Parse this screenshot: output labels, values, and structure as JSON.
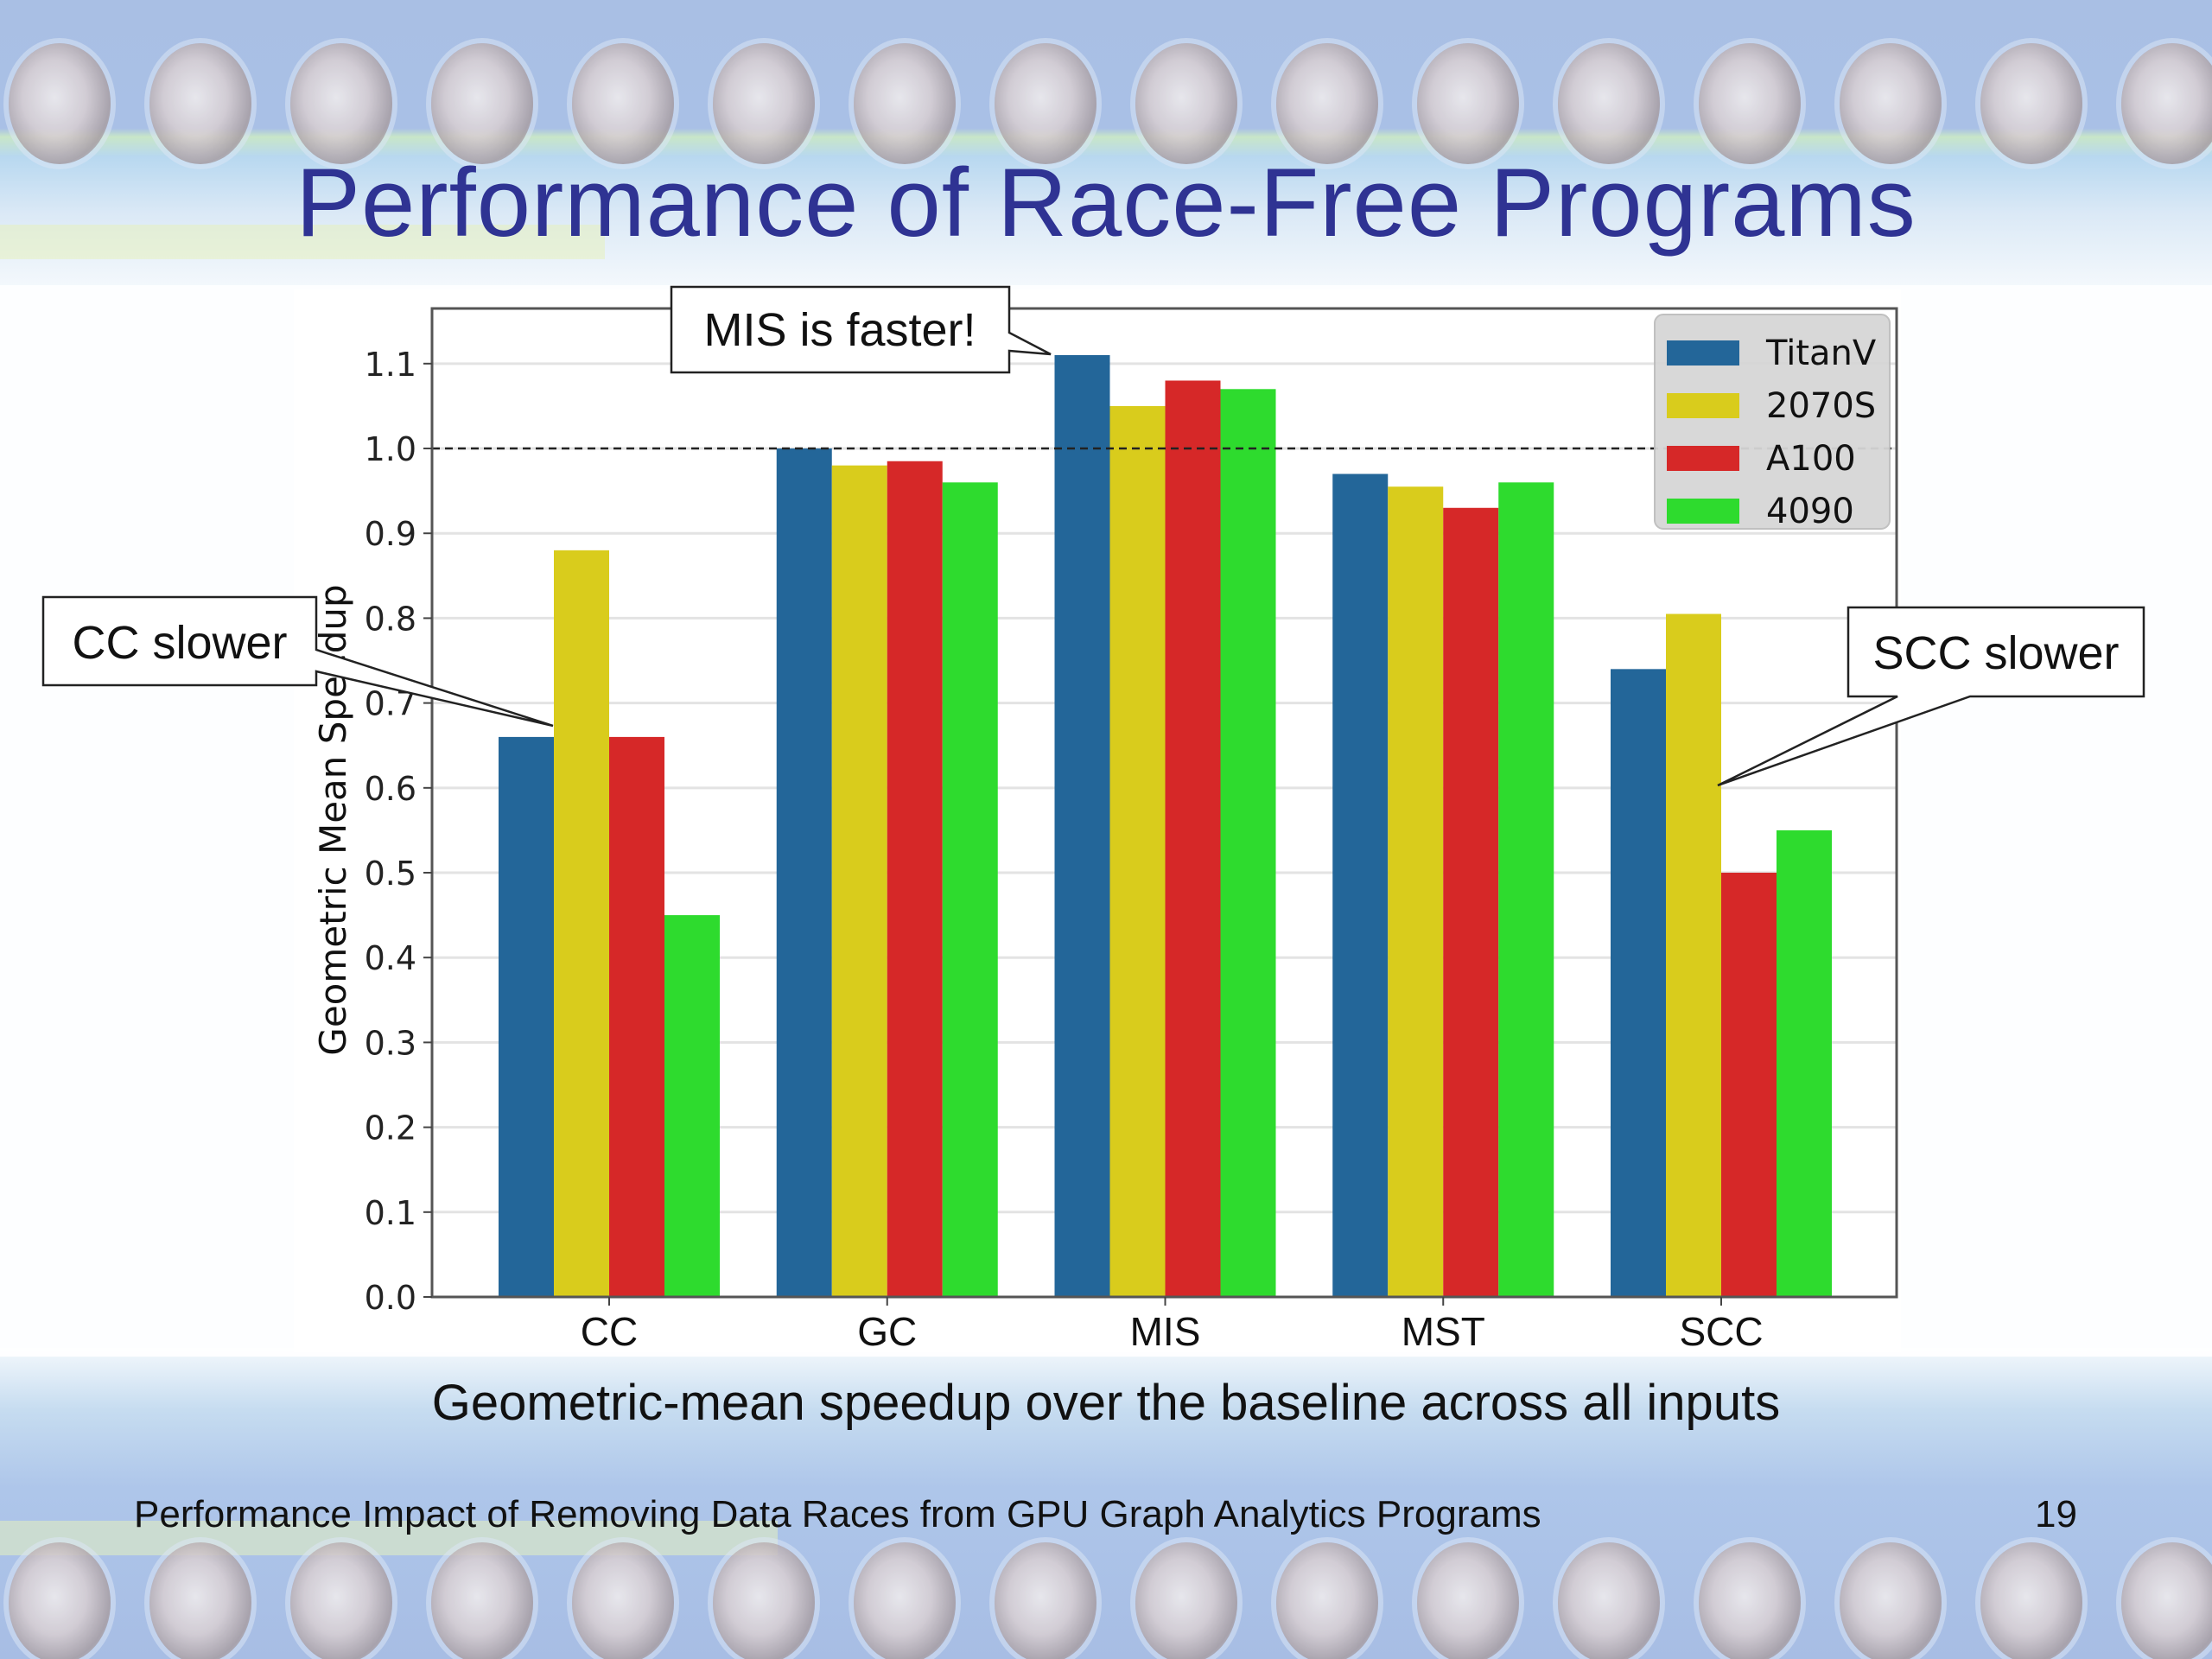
{
  "slide": {
    "title": "Performance of Race-Free Programs",
    "caption": "Geometric-mean speedup over the baseline across all inputs",
    "footer": "Performance Impact of Removing Data Races from GPU Graph Analytics Programs",
    "page_number": "19"
  },
  "colors": {
    "title": "#2f3393",
    "TitanV": "#236699",
    "2070S": "#d9cc1c",
    "A100": "#d62828",
    "4090": "#2edb2e"
  },
  "annotations": [
    {
      "text": "MIS is faster!",
      "target": "MIS / TitanV"
    },
    {
      "text": "CC slower",
      "target": "CC / TitanV"
    },
    {
      "text": "SCC slower",
      "target": "SCC / 2070S"
    }
  ],
  "chart_data": {
    "type": "bar",
    "title": "",
    "xlabel": "",
    "ylabel": "Geometric Mean Speedup",
    "categories": [
      "CC",
      "GC",
      "MIS",
      "MST",
      "SCC"
    ],
    "series": [
      {
        "name": "TitanV",
        "values": [
          0.66,
          1.0,
          1.11,
          0.97,
          0.74
        ]
      },
      {
        "name": "2070S",
        "values": [
          0.88,
          0.98,
          1.05,
          0.955,
          0.805
        ]
      },
      {
        "name": "A100",
        "values": [
          0.66,
          0.985,
          1.08,
          0.93,
          0.5
        ]
      },
      {
        "name": "4090",
        "values": [
          0.45,
          0.96,
          1.07,
          0.96,
          0.55
        ]
      }
    ],
    "ylim": [
      0.0,
      1.165
    ],
    "yticks": [
      "0.0",
      "0.1",
      "0.2",
      "0.3",
      "0.4",
      "0.5",
      "0.6",
      "0.7",
      "0.8",
      "0.9",
      "1.0",
      "1.1"
    ],
    "reference_line": {
      "y": 1.0,
      "style": "dashed"
    },
    "grid": "horizontal",
    "legend": {
      "position": "top-right",
      "entries": [
        "TitanV",
        "2070S",
        "A100",
        "4090"
      ]
    }
  }
}
